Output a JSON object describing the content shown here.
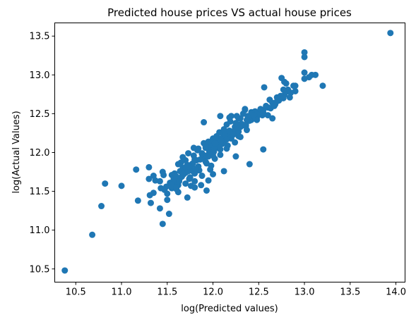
{
  "chart_data": {
    "type": "scatter",
    "title": "Predicted house prices VS actual house prices",
    "xlabel": "log(Predicted values)",
    "ylabel": "log(Actual Values)",
    "xlim": [
      10.27,
      14.1
    ],
    "ylim": [
      10.33,
      13.67
    ],
    "xticks": [
      "10.5",
      "11.0",
      "11.5",
      "12.0",
      "12.5",
      "13.0",
      "13.5",
      "14.0"
    ],
    "yticks": [
      "10.5",
      "11.0",
      "11.5",
      "12.0",
      "12.5",
      "13.0",
      "13.5"
    ],
    "grid": false,
    "marker_color": "#1f77b4",
    "series": [
      {
        "x": [
          10.38,
          10.68,
          10.78,
          10.82,
          11.0,
          11.16,
          11.18,
          11.3,
          11.31,
          11.32,
          11.3,
          11.35,
          11.37,
          11.42,
          11.45,
          11.46,
          11.5,
          11.52,
          11.49,
          11.55,
          11.58,
          11.6,
          11.62,
          11.64,
          11.66,
          11.68,
          11.7,
          11.72,
          11.74,
          11.76,
          11.78,
          11.8,
          11.55,
          11.58,
          11.62,
          11.65,
          11.67,
          11.7,
          11.72,
          11.75,
          11.78,
          11.8,
          11.82,
          11.85,
          11.88,
          11.9,
          11.93,
          11.95,
          11.98,
          12.0,
          12.02,
          12.05,
          12.08,
          12.1,
          11.6,
          11.64,
          11.68,
          11.72,
          11.76,
          11.8,
          11.84,
          11.88,
          11.92,
          11.96,
          12.0,
          12.04,
          12.08,
          12.12,
          12.16,
          12.2,
          12.24,
          12.28,
          12.3,
          11.5,
          11.53,
          11.57,
          11.6,
          11.63,
          11.67,
          11.7,
          11.73,
          11.77,
          11.81,
          11.86,
          11.91,
          11.96,
          12.01,
          12.06,
          12.11,
          12.16,
          12.22,
          11.62,
          11.67,
          11.73,
          11.79,
          11.84,
          11.9,
          11.95,
          12.0,
          12.06,
          12.12,
          12.18,
          12.24,
          12.3,
          12.36,
          12.42,
          12.48,
          11.7,
          11.74,
          11.79,
          11.83,
          11.88,
          11.92,
          11.97,
          12.01,
          12.06,
          12.1,
          12.15,
          12.19,
          12.24,
          12.28,
          12.33,
          12.37,
          11.92,
          11.95,
          12.0,
          12.04,
          12.09,
          12.13,
          12.18,
          12.22,
          12.27,
          12.31,
          12.36,
          12.4,
          12.45,
          12.49,
          12.54,
          12.0,
          12.03,
          12.07,
          12.12,
          12.15,
          12.19,
          12.24,
          12.28,
          12.33,
          12.37,
          12.41,
          12.46,
          12.5,
          12.55,
          12.6,
          12.2,
          12.25,
          12.3,
          12.35,
          12.38,
          12.42,
          12.45,
          12.48,
          12.52,
          12.55,
          12.58,
          12.62,
          12.65,
          12.68,
          12.7,
          12.72,
          12.75,
          12.78,
          12.8,
          12.82,
          12.85,
          12.88,
          12.6,
          12.63,
          12.67,
          12.7,
          12.74,
          12.77,
          12.8,
          12.84,
          12.9,
          12.9,
          12.75,
          12.78,
          13.0,
          13.0,
          13.05,
          13.08,
          13.12,
          13.2,
          13.0,
          13.0,
          12.56,
          12.35,
          12.18,
          12.02,
          11.87,
          11.72,
          11.9,
          12.08,
          12.26,
          11.95,
          12.12,
          12.55,
          12.65,
          12.77,
          12.4,
          12.25,
          12.15,
          11.97,
          11.8,
          11.47,
          11.42,
          11.55,
          11.6,
          11.35,
          11.45,
          11.43,
          11.93,
          13.94
        ],
        "y": [
          10.48,
          10.94,
          11.31,
          11.6,
          11.57,
          11.78,
          11.38,
          11.81,
          11.45,
          11.35,
          11.66,
          11.7,
          11.64,
          11.28,
          11.08,
          11.71,
          11.39,
          11.21,
          11.56,
          11.54,
          11.73,
          11.61,
          11.49,
          11.76,
          11.69,
          11.74,
          11.6,
          11.82,
          11.66,
          11.57,
          11.76,
          11.63,
          11.71,
          11.63,
          11.58,
          11.87,
          11.8,
          11.74,
          11.79,
          11.68,
          11.86,
          11.73,
          11.9,
          11.77,
          11.7,
          11.94,
          11.86,
          11.95,
          11.83,
          12.04,
          11.92,
          12.06,
          11.97,
          12.11,
          11.53,
          11.67,
          11.72,
          11.84,
          11.78,
          11.91,
          11.82,
          11.99,
          11.88,
          12.02,
          11.96,
          12.07,
          12.04,
          12.13,
          12.09,
          12.18,
          12.13,
          12.21,
          12.2,
          11.47,
          11.61,
          11.66,
          11.69,
          11.63,
          11.72,
          11.81,
          11.76,
          11.85,
          11.79,
          11.91,
          11.96,
          12.0,
          12.06,
          12.11,
          12.16,
          12.2,
          12.24,
          11.85,
          11.94,
          11.99,
          12.06,
          12.05,
          12.12,
          12.08,
          12.18,
          12.15,
          12.22,
          12.28,
          12.26,
          12.33,
          12.36,
          12.42,
          12.45,
          11.9,
          11.82,
          11.96,
          12.03,
          11.98,
          12.06,
          12.1,
          12.01,
          12.14,
          12.19,
          12.17,
          12.23,
          12.3,
          12.27,
          12.35,
          12.29,
          12.08,
          12.14,
          12.17,
          12.21,
          12.15,
          12.24,
          12.28,
          12.23,
          12.32,
          12.37,
          12.34,
          12.41,
          12.46,
          12.5,
          12.48,
          11.72,
          12.19,
          12.26,
          12.3,
          12.36,
          12.4,
          12.33,
          12.44,
          12.5,
          12.42,
          12.47,
          12.53,
          12.49,
          12.55,
          12.58,
          12.47,
          12.38,
          12.44,
          12.56,
          12.47,
          12.52,
          12.48,
          12.42,
          12.56,
          12.51,
          12.6,
          12.68,
          12.64,
          12.62,
          12.71,
          12.67,
          12.7,
          12.74,
          12.78,
          12.81,
          12.77,
          12.86,
          12.48,
          12.57,
          12.6,
          12.66,
          12.73,
          12.81,
          12.89,
          12.71,
          12.79,
          12.86,
          12.96,
          12.91,
          13.29,
          13.23,
          12.97,
          13.0,
          13.0,
          12.86,
          13.03,
          12.95,
          12.84,
          12.55,
          12.45,
          12.12,
          11.58,
          11.42,
          12.39,
          12.47,
          12.47,
          11.64,
          11.76,
          12.04,
          12.44,
          12.7,
          11.85,
          11.95,
          12.05,
          11.78,
          11.55,
          11.52,
          11.63,
          11.59,
          11.55,
          11.48,
          11.75,
          11.54,
          11.51,
          13.54
        ]
      }
    ]
  }
}
